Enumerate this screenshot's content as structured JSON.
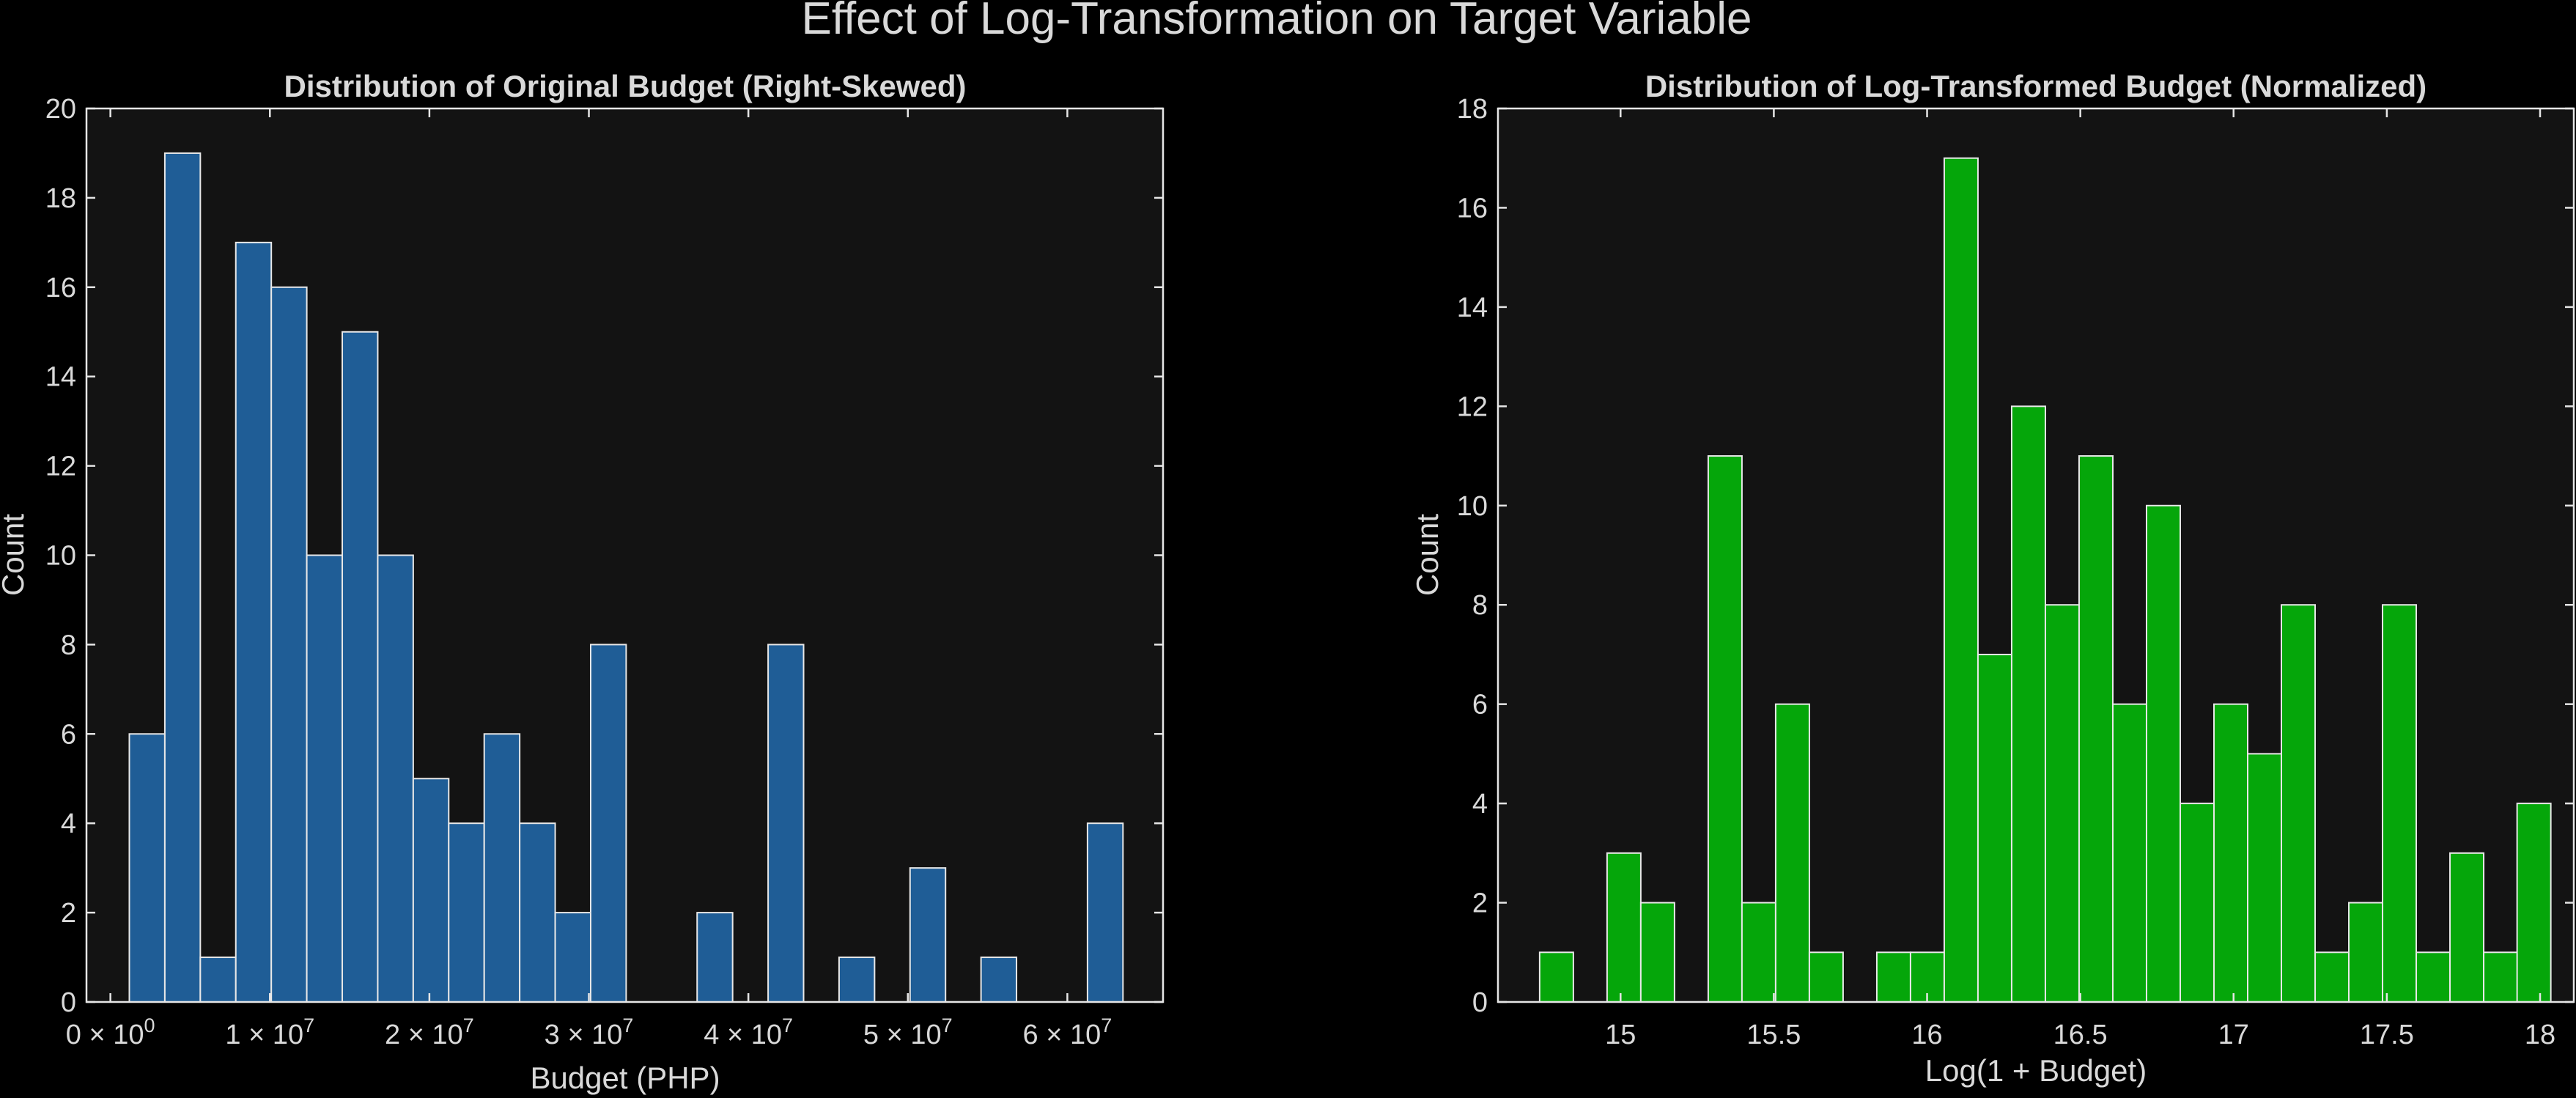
{
  "figure": {
    "title": "Effect of Log-Transformation on Target Variable"
  },
  "colors": {
    "background": "#000000",
    "plot_bg": "#131313",
    "frame": "#e6e6e6",
    "text": "#d9d9d9",
    "bar_left": "#1f5d96",
    "bar_right": "#05a60a",
    "bar_edge": "#e8e8e8"
  },
  "chart_data": [
    {
      "type": "bar",
      "subtype": "histogram",
      "title": "Distribution of Original Budget (Right-Skewed)",
      "xlabel": "Budget (PHP)",
      "ylabel": "Count",
      "xlim": [
        -1500000,
        66000000
      ],
      "ylim": [
        0,
        20
      ],
      "bin_width": 2225000,
      "x": [
        2300000,
        4525000,
        6750000,
        8975000,
        11200000,
        13425000,
        15650000,
        17875000,
        20100000,
        22325000,
        24550000,
        26775000,
        29000000,
        31225000,
        33450000,
        35675000,
        37900000,
        40125000,
        42350000,
        44575000,
        46800000,
        49025000,
        51250000,
        53475000,
        55700000,
        57925000,
        60150000,
        62375000
      ],
      "values": [
        6,
        19,
        1,
        17,
        16,
        10,
        15,
        10,
        5,
        4,
        6,
        4,
        2,
        8,
        0,
        0,
        2,
        0,
        8,
        0,
        1,
        0,
        3,
        0,
        1,
        0,
        0,
        4
      ],
      "xticks": [
        0,
        10000000,
        20000000,
        30000000,
        40000000,
        50000000,
        60000000
      ],
      "xtick_labels": [
        {
          "base": "0 × 10",
          "exp": "0"
        },
        {
          "base": "1 × 10",
          "exp": "7"
        },
        {
          "base": "2 × 10",
          "exp": "7"
        },
        {
          "base": "3 × 10",
          "exp": "7"
        },
        {
          "base": "4 × 10",
          "exp": "7"
        },
        {
          "base": "5 × 10",
          "exp": "7"
        },
        {
          "base": "6 × 10",
          "exp": "7"
        }
      ],
      "yticks": [
        0,
        2,
        4,
        6,
        8,
        10,
        12,
        14,
        16,
        18,
        20
      ],
      "grid": false
    },
    {
      "type": "bar",
      "subtype": "histogram",
      "title": "Distribution of Log-Transformed Budget (Normalized)",
      "xlabel": "Log(1 + Budget)",
      "ylabel": "Count",
      "xlim": [
        14.6,
        18.11
      ],
      "ylim": [
        0,
        18
      ],
      "bin_width": 0.11,
      "x": [
        14.791,
        14.901,
        15.011,
        15.121,
        15.231,
        15.341,
        15.451,
        15.561,
        15.671,
        15.781,
        15.891,
        16.001,
        16.111,
        16.221,
        16.331,
        16.441,
        16.551,
        16.661,
        16.771,
        16.881,
        16.991,
        17.101,
        17.211,
        17.321,
        17.431,
        17.541,
        17.651,
        17.761,
        17.871
      ],
      "values": [
        1,
        0,
        3,
        2,
        0,
        11,
        2,
        6,
        1,
        0,
        1,
        1,
        17,
        7,
        12,
        8,
        11,
        6,
        10,
        4,
        6,
        5,
        8,
        1,
        2,
        8,
        1,
        3,
        1
      ],
      "extra_bar": {
        "x": 17.98,
        "value": 4
      },
      "xticks": [
        15,
        15.5,
        16,
        16.5,
        17,
        17.5,
        18
      ],
      "xtick_labels": [
        "15",
        "15.5",
        "16",
        "16.5",
        "17",
        "17.5",
        "18"
      ],
      "yticks": [
        0,
        2,
        4,
        6,
        8,
        10,
        12,
        14,
        16,
        18
      ],
      "grid": false
    }
  ]
}
